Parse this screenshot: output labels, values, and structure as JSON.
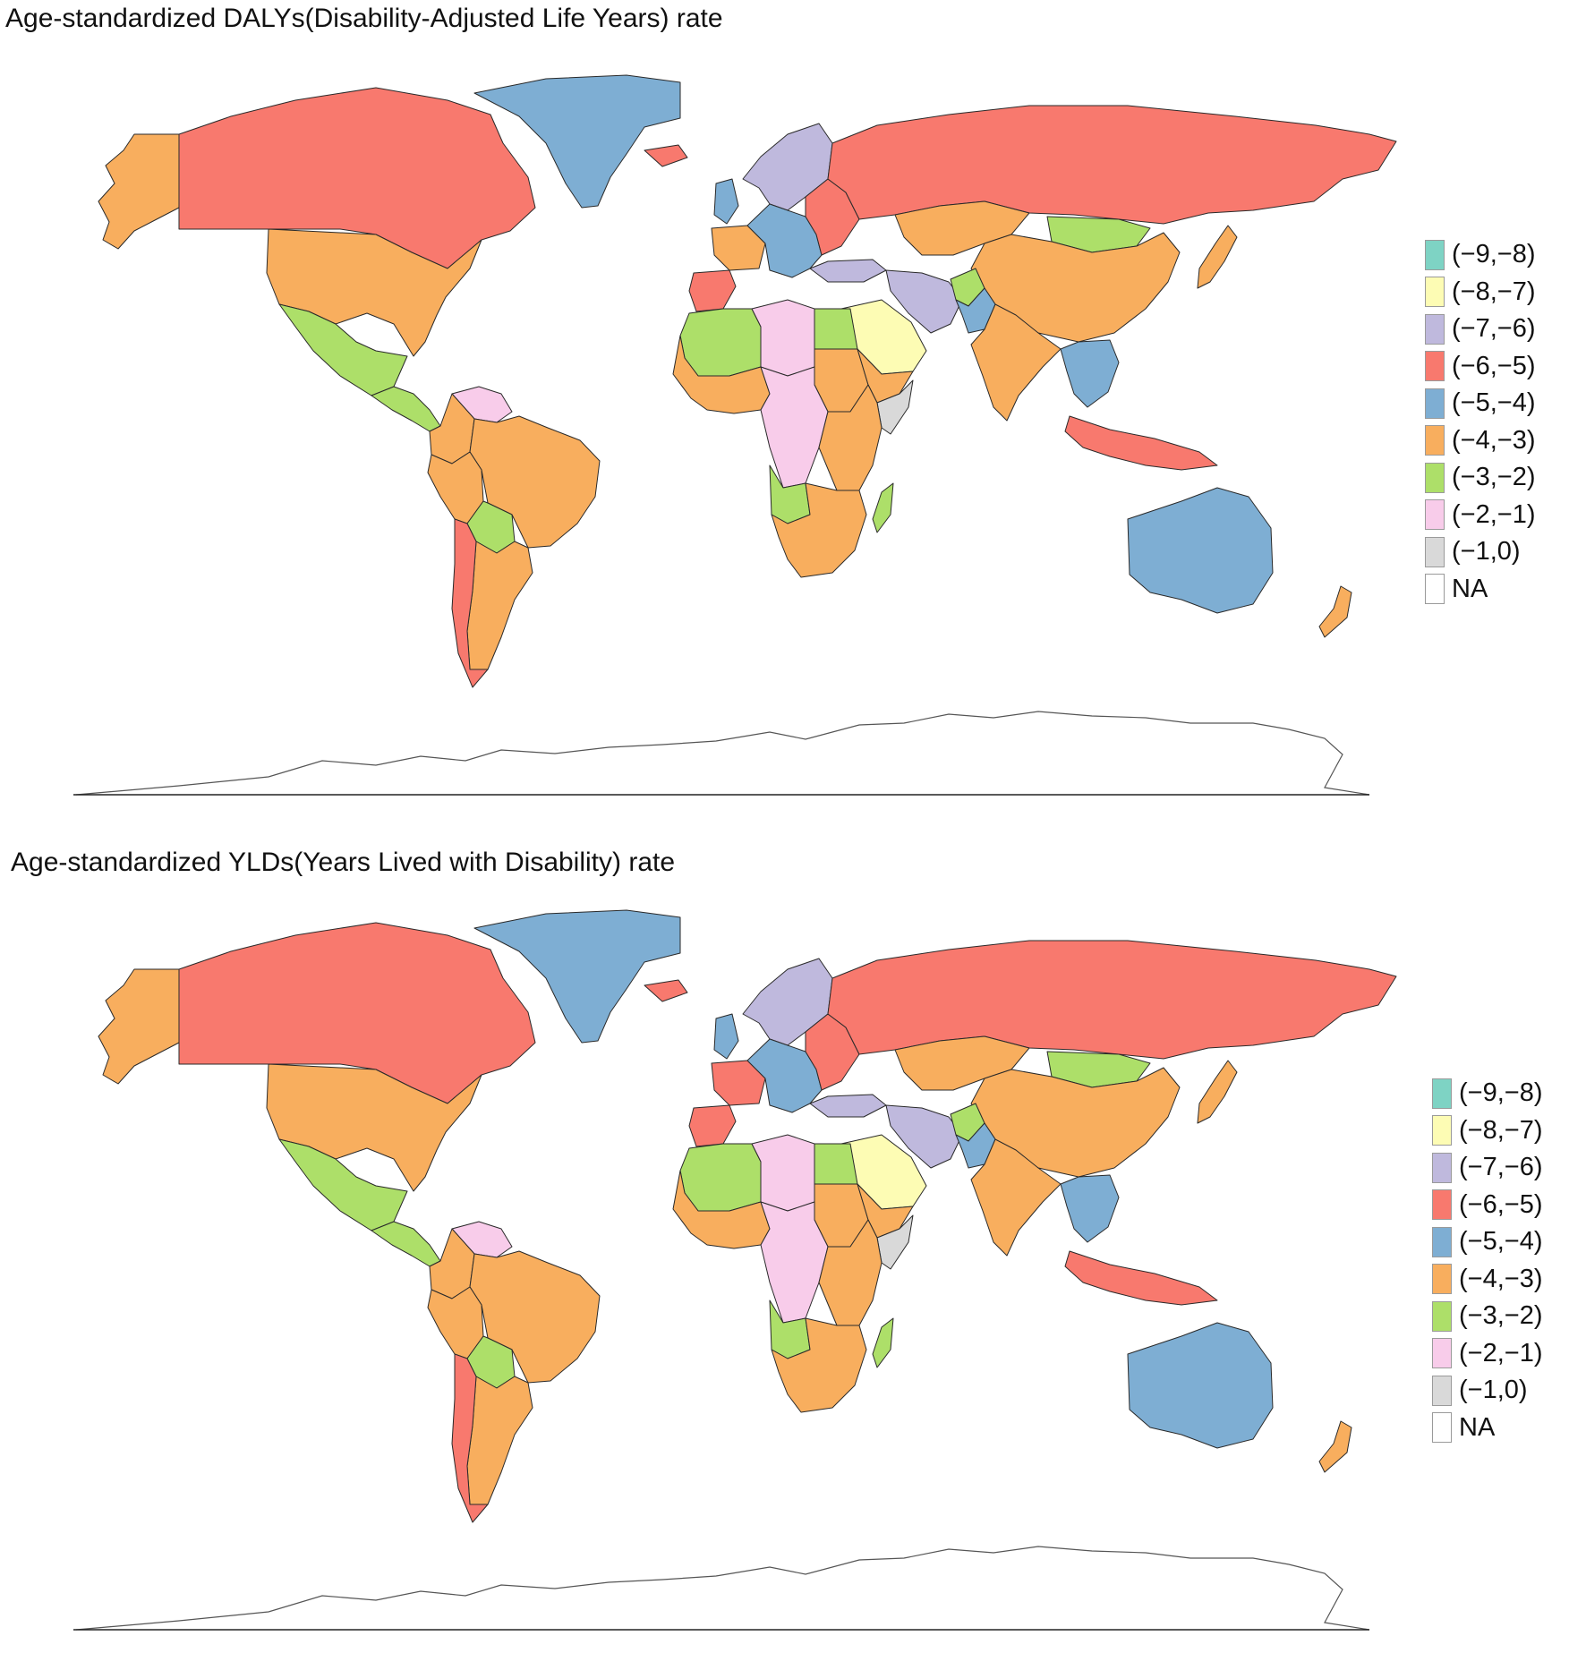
{
  "panels": [
    {
      "title": "Age-standardized DALYs(Disability-Adjusted Life Years) rate",
      "legend_title": ""
    },
    {
      "title": "Age-standardized YLDs(Years Lived with Disability) rate",
      "legend_title": ""
    }
  ],
  "legend": {
    "classes": [
      {
        "label": "(−9,−8)",
        "color": "#7ed3c4"
      },
      {
        "label": "(−8,−7)",
        "color": "#fdfcb4"
      },
      {
        "label": "(−7,−6)",
        "color": "#bfb9dd"
      },
      {
        "label": "(−6,−5)",
        "color": "#f8796e"
      },
      {
        "label": "(−5,−4)",
        "color": "#7eaed3"
      },
      {
        "label": "(−4,−3)",
        "color": "#f8ae5e"
      },
      {
        "label": "(−3,−2)",
        "color": "#addf69"
      },
      {
        "label": "(−2,−1)",
        "color": "#f8ccea"
      },
      {
        "label": "(−1,0)",
        "color": "#d9d9d9"
      },
      {
        "label": "NA",
        "color": "#ffffff"
      }
    ]
  },
  "map_data": {
    "type": "choropleth",
    "regions": [
      {
        "name": "Alaska",
        "dalys": "(−4,−3)",
        "ylds": "(−4,−3)"
      },
      {
        "name": "Canada",
        "dalys": "(−6,−5)",
        "ylds": "(−6,−5)"
      },
      {
        "name": "United States",
        "dalys": "(−4,−3)",
        "ylds": "(−4,−3)"
      },
      {
        "name": "Mexico",
        "dalys": "(−3,−2)",
        "ylds": "(−3,−2)"
      },
      {
        "name": "Central America",
        "dalys": "(−3,−2)",
        "ylds": "(−3,−2)"
      },
      {
        "name": "Greenland",
        "dalys": "(−5,−4)",
        "ylds": "(−5,−4)"
      },
      {
        "name": "Venezuela",
        "dalys": "(−2,−1)",
        "ylds": "(−2,−1)"
      },
      {
        "name": "Colombia",
        "dalys": "(−4,−3)",
        "ylds": "(−4,−3)"
      },
      {
        "name": "Brazil",
        "dalys": "(−4,−3)",
        "ylds": "(−4,−3)"
      },
      {
        "name": "Peru",
        "dalys": "(−4,−3)",
        "ylds": "(−4,−3)"
      },
      {
        "name": "Bolivia",
        "dalys": "(−3,−2)",
        "ylds": "(−3,−2)"
      },
      {
        "name": "Argentina",
        "dalys": "(−4,−3)",
        "ylds": "(−4,−3)"
      },
      {
        "name": "Chile",
        "dalys": "(−6,−5)",
        "ylds": "(−6,−5)"
      },
      {
        "name": "Iceland",
        "dalys": "(−6,−5)",
        "ylds": "(−6,−5)"
      },
      {
        "name": "United Kingdom",
        "dalys": "(−5,−4)",
        "ylds": "(−5,−4)"
      },
      {
        "name": "Scandinavia",
        "dalys": "(−7,−6)",
        "ylds": "(−7,−6)"
      },
      {
        "name": "France",
        "dalys": "(−4,−3)",
        "ylds": "(−6,−5)"
      },
      {
        "name": "Iberia",
        "dalys": "(−6,−5)",
        "ylds": "(−6,−5)"
      },
      {
        "name": "Central Europe",
        "dalys": "(−5,−4)",
        "ylds": "(−5,−4)"
      },
      {
        "name": "Eastern Europe",
        "dalys": "(−6,−5)",
        "ylds": "(−6,−5)"
      },
      {
        "name": "Turkey",
        "dalys": "(−7,−6)",
        "ylds": "(−7,−6)"
      },
      {
        "name": "Russia",
        "dalys": "(−6,−5)",
        "ylds": "(−6,−5)"
      },
      {
        "name": "Kazakhstan",
        "dalys": "(−4,−3)",
        "ylds": "(−4,−3)"
      },
      {
        "name": "Mongolia",
        "dalys": "(−3,−2)",
        "ylds": "(−3,−2)"
      },
      {
        "name": "China",
        "dalys": "(−4,−3)",
        "ylds": "(−4,−3)"
      },
      {
        "name": "Japan",
        "dalys": "(−4,−3)",
        "ylds": "(−4,−3)"
      },
      {
        "name": "Iran",
        "dalys": "(−7,−6)",
        "ylds": "(−7,−6)"
      },
      {
        "name": "Afghanistan",
        "dalys": "(−3,−2)",
        "ylds": "(−3,−2)"
      },
      {
        "name": "Pakistan",
        "dalys": "(−5,−4)",
        "ylds": "(−5,−4)"
      },
      {
        "name": "India",
        "dalys": "(−4,−3)",
        "ylds": "(−4,−3)"
      },
      {
        "name": "Saudi Arabia",
        "dalys": "(−8,−7)",
        "ylds": "(−8,−7)"
      },
      {
        "name": "Southeast Asia",
        "dalys": "(−5,−4)",
        "ylds": "(−5,−4)"
      },
      {
        "name": "Indonesia",
        "dalys": "(−6,−5)",
        "ylds": "(−6,−5)"
      },
      {
        "name": "Australia",
        "dalys": "(−5,−4)",
        "ylds": "(−5,−4)"
      },
      {
        "name": "New Zealand",
        "dalys": "(−4,−3)",
        "ylds": "(−4,−3)"
      },
      {
        "name": "North Africa (west)",
        "dalys": "(−3,−2)",
        "ylds": "(−3,−2)"
      },
      {
        "name": "North Africa (central)",
        "dalys": "(−2,−1)",
        "ylds": "(−2,−1)"
      },
      {
        "name": "Egypt",
        "dalys": "(−3,−2)",
        "ylds": "(−3,−2)"
      },
      {
        "name": "Sudan",
        "dalys": "(−4,−3)",
        "ylds": "(−4,−3)"
      },
      {
        "name": "West Africa",
        "dalys": "(−4,−3)",
        "ylds": "(−4,−3)"
      },
      {
        "name": "Central Africa",
        "dalys": "(−2,−1)",
        "ylds": "(−2,−1)"
      },
      {
        "name": "Horn of Africa",
        "dalys": "(−4,−3)",
        "ylds": "(−4,−3)"
      },
      {
        "name": "Somalia",
        "dalys": "(−1,0)",
        "ylds": "(−1,0)"
      },
      {
        "name": "East Africa",
        "dalys": "(−4,−3)",
        "ylds": "(−4,−3)"
      },
      {
        "name": "Angola",
        "dalys": "(−3,−2)",
        "ylds": "(−3,−2)"
      },
      {
        "name": "Southern Africa",
        "dalys": "(−4,−3)",
        "ylds": "(−4,−3)"
      },
      {
        "name": "Madagascar",
        "dalys": "(−3,−2)",
        "ylds": "(−3,−2)"
      },
      {
        "name": "Antarctica",
        "dalys": "NA",
        "ylds": "NA"
      }
    ]
  }
}
